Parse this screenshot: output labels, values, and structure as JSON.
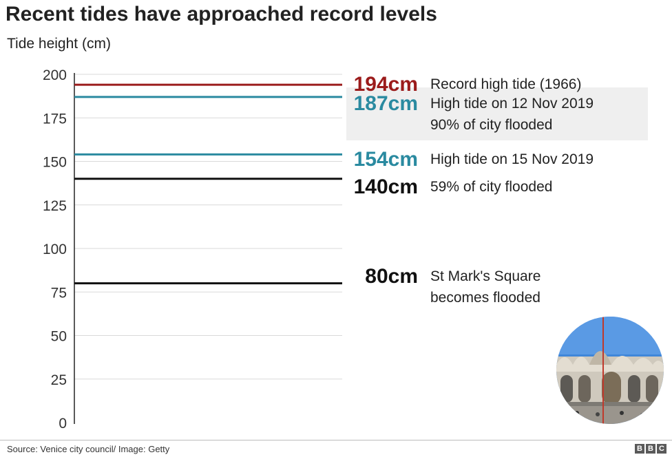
{
  "title": "Recent tides have approached record levels",
  "source": "Source: Venice city council/ Image: Getty",
  "logo": {
    "letters": [
      "B",
      "B",
      "C"
    ]
  },
  "colors": {
    "record": "#9b1b1b",
    "recent": "#2a8aa0",
    "threshold": "#111111",
    "grid": "#d9d9d9",
    "axis": "#222222"
  },
  "chart_data": {
    "type": "line",
    "title": "Recent tides have approached record levels",
    "ylabel": "Tide height (cm)",
    "ylim": [
      0,
      200
    ],
    "yticks": [
      0,
      25,
      50,
      75,
      100,
      125,
      150,
      175,
      200
    ],
    "grid": true,
    "series": [
      {
        "value": 194,
        "value_label": "194cm",
        "label_lines": [
          "Record high tide (1966)"
        ],
        "color": "#9b1b1b",
        "highlight": false
      },
      {
        "value": 187,
        "value_label": "187cm",
        "label_lines": [
          "High tide on 12 Nov 2019",
          "90% of city flooded"
        ],
        "color": "#2a8aa0",
        "highlight": true
      },
      {
        "value": 154,
        "value_label": "154cm",
        "label_lines": [
          "High tide on 15 Nov 2019"
        ],
        "color": "#2a8aa0",
        "highlight": false
      },
      {
        "value": 140,
        "value_label": "140cm",
        "label_lines": [
          "59% of city flooded"
        ],
        "color": "#111111",
        "highlight": false
      },
      {
        "value": 80,
        "value_label": "80cm",
        "label_lines": [
          "St Mark's Square",
          "becomes flooded"
        ],
        "color": "#111111",
        "highlight": false
      }
    ]
  }
}
